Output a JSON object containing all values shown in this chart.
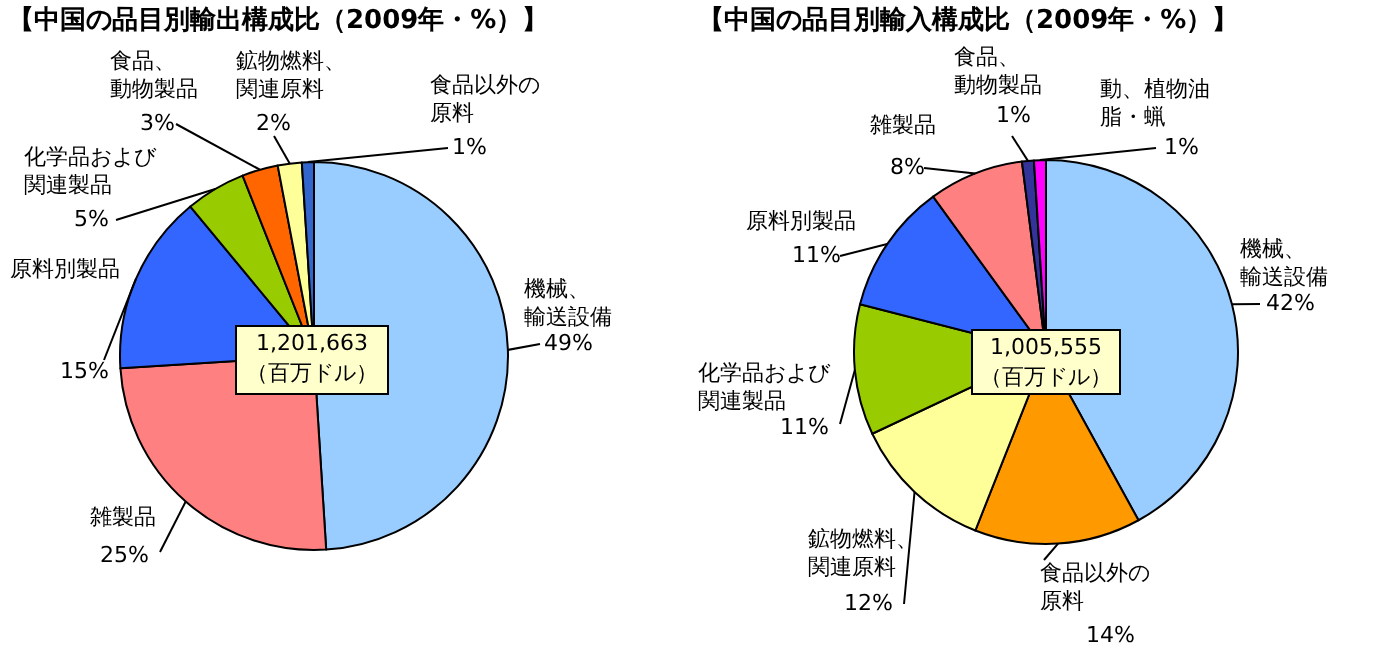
{
  "chart_data": [
    {
      "type": "pie",
      "title": "【中国の品目別輸出構成比（2009年・%）】",
      "categories": [
        "機械、輸送設備",
        "雑製品",
        "原料別製品",
        "化学品および関連製品",
        "食品、動物製品",
        "鉱物燃料、関連原料",
        "食品以外の原料"
      ],
      "values": [
        49,
        25,
        15,
        5,
        3,
        2,
        1
      ],
      "colors": [
        "#99ccff",
        "#ff8080",
        "#3366ff",
        "#99cc00",
        "#ff6600",
        "#ffff99",
        "#3366cc"
      ],
      "value_labels": [
        "49%",
        "25%",
        "15%",
        "5%",
        "3%",
        "2%",
        "1%"
      ],
      "annotations": [
        "1,201,663",
        "（百万ドル）"
      ]
    },
    {
      "type": "pie",
      "title": "【中国の品目別輸入構成比（2009年・%）】",
      "categories": [
        "機械、輸送設備",
        "食品以外の原料",
        "鉱物燃料、関連原料",
        "化学品および関連製品",
        "原料別製品",
        "雑製品",
        "食品、動物製品",
        "動、植物油脂・蝋"
      ],
      "values": [
        42,
        14,
        12,
        11,
        11,
        8,
        1,
        1
      ],
      "colors": [
        "#99ccff",
        "#ff9900",
        "#ffff99",
        "#99cc00",
        "#3366ff",
        "#ff8080",
        "#333399",
        "#ff00ff"
      ],
      "value_labels": [
        "42%",
        "14%",
        "12%",
        "11%",
        "11%",
        "8%",
        "1%",
        "1%"
      ],
      "annotations": [
        "1,005,555",
        "（百万ドル）"
      ]
    }
  ]
}
